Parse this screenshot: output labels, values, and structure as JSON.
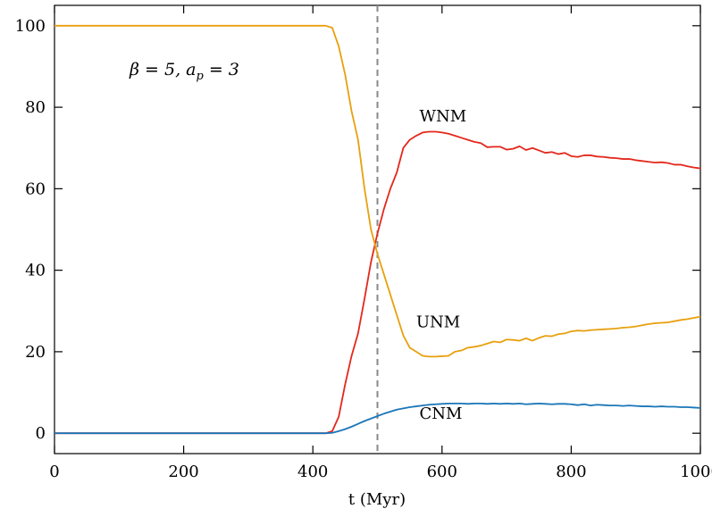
{
  "chart_data": {
    "type": "line",
    "title": "",
    "xlabel": "t (Myr)",
    "ylabel": "",
    "xlim": [
      0,
      1000
    ],
    "ylim": [
      -5,
      105
    ],
    "x_ticks": [
      0,
      200,
      400,
      600,
      800,
      1000
    ],
    "y_ticks": [
      0,
      20,
      40,
      60,
      80,
      100
    ],
    "grid": false,
    "annotation": "β = 5, a_p = 3",
    "vline": {
      "x": 500,
      "style": "dashed",
      "color": "#888888"
    },
    "series": [
      {
        "name": "WNM",
        "color": "#e3281c",
        "x": [
          0,
          420,
          430,
          440,
          450,
          460,
          470,
          480,
          490,
          500,
          510,
          520,
          530,
          540,
          550,
          560,
          570,
          580,
          590,
          600,
          610,
          620,
          630,
          640,
          650,
          660,
          670,
          680,
          690,
          700,
          710,
          720,
          730,
          740,
          750,
          760,
          770,
          780,
          790,
          800,
          810,
          820,
          830,
          840,
          850,
          860,
          870,
          880,
          890,
          900,
          910,
          920,
          930,
          940,
          950,
          960,
          970,
          980,
          990,
          1000
        ],
        "y": [
          0,
          0,
          0.5,
          4,
          12,
          19,
          24.5,
          33,
          42,
          49,
          55,
          60,
          64,
          70,
          72,
          73,
          73.8,
          74,
          74,
          73.8,
          73.5,
          73,
          72.5,
          72,
          71.5,
          71.2,
          70.2,
          70.3,
          70.3,
          69.6,
          69.8,
          70.4,
          69.5,
          70,
          69.4,
          68.8,
          69,
          68.5,
          68.8,
          68,
          67.8,
          68.2,
          68.2,
          67.9,
          67.8,
          67.6,
          67.5,
          67.3,
          67.3,
          67,
          66.8,
          66.6,
          66.4,
          66.5,
          66.3,
          65.9,
          65.9,
          65.5,
          65.2,
          65
        ]
      },
      {
        "name": "UNM",
        "color": "#e8a00e",
        "x": [
          0,
          420,
          430,
          440,
          450,
          460,
          470,
          480,
          490,
          500,
          510,
          520,
          530,
          540,
          550,
          560,
          570,
          580,
          590,
          600,
          610,
          620,
          630,
          640,
          650,
          660,
          670,
          680,
          690,
          700,
          710,
          720,
          730,
          740,
          750,
          760,
          770,
          780,
          790,
          800,
          810,
          820,
          830,
          840,
          850,
          860,
          870,
          880,
          890,
          900,
          910,
          920,
          930,
          940,
          950,
          960,
          970,
          980,
          990,
          1000
        ],
        "y": [
          100,
          100,
          99.5,
          95,
          88,
          79,
          72,
          60,
          50,
          44,
          39,
          34,
          29,
          24,
          21,
          20,
          19,
          18.8,
          18.8,
          18.9,
          19,
          20,
          20.3,
          21,
          21.2,
          21.5,
          22,
          22.5,
          22.3,
          23,
          22.9,
          22.7,
          23.3,
          22.7,
          23.4,
          23.9,
          23.8,
          24.3,
          24.5,
          25,
          25.2,
          25.1,
          25.3,
          25.4,
          25.5,
          25.6,
          25.7,
          25.9,
          26,
          26.2,
          26.5,
          26.8,
          27,
          27.1,
          27.2,
          27.5,
          27.8,
          28,
          28.3,
          28.6
        ]
      },
      {
        "name": "CNM",
        "color": "#1a76b8",
        "x": [
          0,
          420,
          430,
          440,
          450,
          460,
          470,
          480,
          490,
          500,
          510,
          520,
          530,
          540,
          550,
          560,
          570,
          580,
          590,
          600,
          610,
          620,
          630,
          640,
          650,
          660,
          670,
          680,
          690,
          700,
          710,
          720,
          730,
          740,
          750,
          760,
          770,
          780,
          790,
          800,
          810,
          820,
          830,
          840,
          850,
          860,
          870,
          880,
          890,
          900,
          910,
          920,
          930,
          940,
          950,
          960,
          970,
          980,
          990,
          1000
        ],
        "y": [
          0,
          0,
          0.1,
          0.5,
          1,
          1.6,
          2.3,
          3,
          3.6,
          4.2,
          4.8,
          5.3,
          5.8,
          6.1,
          6.4,
          6.6,
          6.8,
          7,
          7.1,
          7.2,
          7.3,
          7.3,
          7.3,
          7.2,
          7.3,
          7.3,
          7.2,
          7.3,
          7.2,
          7.3,
          7.2,
          7.3,
          7.1,
          7.2,
          7.3,
          7.2,
          7.1,
          7.2,
          7.2,
          7.1,
          6.9,
          7.1,
          6.8,
          7,
          6.9,
          6.8,
          6.8,
          6.7,
          6.8,
          6.7,
          6.6,
          6.6,
          6.5,
          6.6,
          6.5,
          6.5,
          6.4,
          6.4,
          6.3,
          6.2
        ]
      }
    ],
    "series_label_positions": [
      {
        "name": "WNM",
        "x": 565,
        "y": 76.5
      },
      {
        "name": "UNM",
        "x": 560,
        "y": 26
      },
      {
        "name": "CNM",
        "x": 565,
        "y": 3.5
      }
    ]
  }
}
